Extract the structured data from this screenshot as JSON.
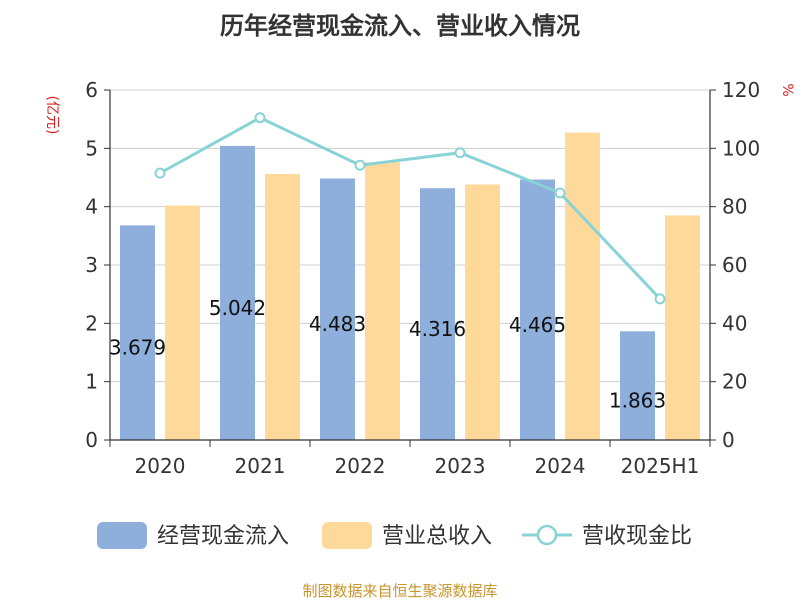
{
  "chart_data": {
    "type": "bar",
    "title": "历年经营现金流入、营业收入情况",
    "categories": [
      "2020",
      "2021",
      "2022",
      "2023",
      "2024",
      "2025H1"
    ],
    "series": [
      {
        "name": "经营现金流入",
        "type": "bar",
        "axis": "left",
        "color": "#8EAEDB",
        "values": [
          3.679,
          5.042,
          4.483,
          4.316,
          4.465,
          1.863
        ],
        "labels": [
          "3.679",
          "5.042",
          "4.483",
          "4.316",
          "4.465",
          "1.863"
        ]
      },
      {
        "name": "营业总收入",
        "type": "bar",
        "axis": "left",
        "color": "#FFD99A",
        "values": [
          4.02,
          4.56,
          4.76,
          4.38,
          5.27,
          3.85
        ]
      },
      {
        "name": "营收现金比",
        "type": "line",
        "axis": "right",
        "color": "#88D3D6",
        "values": [
          91.5,
          110.5,
          94.2,
          98.5,
          84.7,
          48.4
        ]
      }
    ],
    "y_left": {
      "unit": "(亿元)",
      "min": 0,
      "max": 6,
      "ticks": [
        "0",
        "1",
        "2",
        "3",
        "4",
        "5",
        "6"
      ],
      "unit_color": "#e02020"
    },
    "y_right": {
      "unit": "%",
      "min": 0,
      "max": 120,
      "ticks": [
        "0",
        "20",
        "40",
        "60",
        "80",
        "100",
        "120"
      ],
      "unit_color": "#e02020"
    },
    "grid": true,
    "legend_position": "bottom",
    "source": "制图数据来自恒生聚源数据库",
    "source_color": "#c8962d"
  }
}
